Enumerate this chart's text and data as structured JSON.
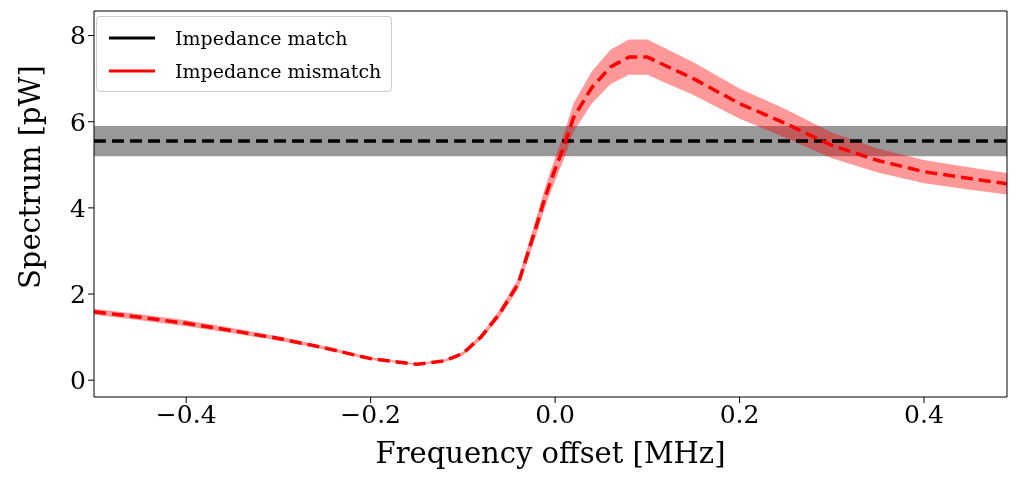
{
  "chart_data": {
    "type": "line",
    "xlabel": "Frequency offset [MHz]",
    "ylabel": "Spectrum [pW]",
    "xlim": [
      -0.5,
      0.49
    ],
    "ylim": [
      -0.39,
      8.57
    ],
    "xticks": [
      {
        "value": -0.4,
        "label": "−0.4"
      },
      {
        "value": -0.2,
        "label": "−0.2"
      },
      {
        "value": 0,
        "label": "0.0"
      },
      0.2,
      0.4
    ],
    "yticks": [
      0,
      2,
      4,
      6,
      8
    ],
    "grid": false,
    "legend": "top left",
    "line_style": "dashed",
    "series": [
      {
        "name": "Impedance match",
        "color": "#000000",
        "x": [
          -0.5,
          0.49
        ],
        "values": [
          5.55,
          5.55
        ],
        "lower": [
          5.2,
          5.2
        ],
        "upper": [
          5.9,
          5.9
        ]
      },
      {
        "name": "Impedance mismatch",
        "color": "#ff0000",
        "x": [
          -0.5,
          -0.45,
          -0.4,
          -0.35,
          -0.3,
          -0.25,
          -0.2,
          -0.15,
          -0.12,
          -0.1,
          -0.08,
          -0.06,
          -0.04,
          -0.02,
          -0.01,
          0,
          0.01,
          0.02,
          0.04,
          0.06,
          0.08,
          0.1,
          0.12,
          0.15,
          0.2,
          0.25,
          0.3,
          0.35,
          0.4,
          0.45,
          0.49
        ],
        "values": [
          1.59,
          1.46,
          1.32,
          1.15,
          0.97,
          0.75,
          0.5,
          0.37,
          0.45,
          0.62,
          1.01,
          1.55,
          2.24,
          3.6,
          4.3,
          4.9,
          5.45,
          6.1,
          6.8,
          7.27,
          7.5,
          7.5,
          7.3,
          7.0,
          6.42,
          5.96,
          5.45,
          5.1,
          4.84,
          4.68,
          4.56
        ],
        "lower": [
          1.52,
          1.39,
          1.25,
          1.09,
          0.92,
          0.71,
          0.47,
          0.35,
          0.42,
          0.58,
          0.95,
          1.46,
          2.12,
          3.4,
          4.07,
          4.63,
          5.15,
          5.77,
          6.43,
          6.87,
          7.09,
          7.09,
          6.9,
          6.62,
          6.07,
          5.63,
          5.15,
          4.82,
          4.57,
          4.42,
          4.31
        ],
        "upper": [
          1.66,
          1.53,
          1.39,
          1.21,
          1.02,
          0.79,
          0.53,
          0.39,
          0.48,
          0.66,
          1.07,
          1.64,
          2.36,
          3.8,
          4.53,
          5.17,
          5.75,
          6.43,
          7.17,
          7.67,
          7.91,
          7.91,
          7.7,
          7.38,
          6.77,
          6.29,
          5.75,
          5.38,
          5.11,
          4.94,
          4.81
        ]
      }
    ]
  }
}
